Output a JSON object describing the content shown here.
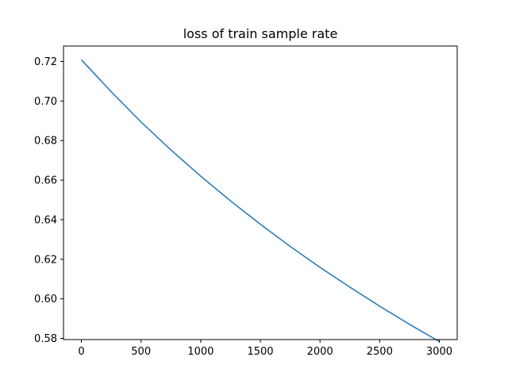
{
  "chart_data": {
    "type": "line",
    "title": "loss of train sample rate",
    "xlabel": "",
    "ylabel": "",
    "xlim": [
      -150,
      3150
    ],
    "ylim": [
      0.5794,
      0.7278
    ],
    "xticks": [
      0,
      500,
      1000,
      1500,
      2000,
      2500,
      3000
    ],
    "xtick_labels": [
      "0",
      "500",
      "1000",
      "1500",
      "2000",
      "2500",
      "3000"
    ],
    "yticks": [
      0.58,
      0.6,
      0.62,
      0.64,
      0.66,
      0.68,
      0.7,
      0.72
    ],
    "ytick_labels": [
      "0.58",
      "0.60",
      "0.62",
      "0.64",
      "0.66",
      "0.68",
      "0.70",
      "0.72"
    ],
    "grid": false,
    "legend": "none",
    "series": [
      {
        "color": "#1f77b4",
        "x": [
          0,
          250,
          500,
          750,
          1000,
          1250,
          1500,
          1750,
          2000,
          2250,
          2500,
          2750,
          3000
        ],
        "y": [
          0.7208,
          0.7047,
          0.6894,
          0.6753,
          0.662,
          0.6495,
          0.6377,
          0.6265,
          0.6159,
          0.6059,
          0.5963,
          0.5871,
          0.5784
        ]
      }
    ]
  }
}
